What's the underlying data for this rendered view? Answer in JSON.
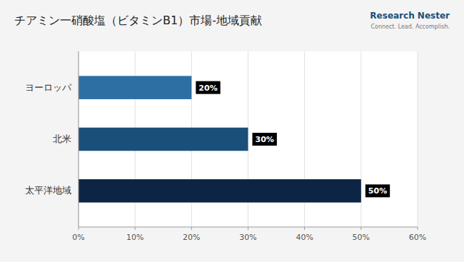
{
  "chart_data": {
    "type": "bar",
    "orientation": "horizontal",
    "title": "チアミン一硝酸塩（ビタミンB1）市場-地域貢献",
    "annotations": [
      "Research Nester",
      "Connect. Lead. Accomplish."
    ],
    "categories": [
      "太平洋地域",
      "北米",
      "ヨーロッパ"
    ],
    "values": [
      50,
      30,
      20
    ],
    "value_labels": [
      "50%",
      "30%",
      "20%"
    ],
    "data_labels": true,
    "colors": [
      "#0d2545",
      "#1a4f7a",
      "#2e6fa3"
    ],
    "xlim": [
      0,
      60
    ],
    "xticks": [
      {
        "value": 0,
        "label": "0%"
      },
      {
        "value": 10,
        "label": "10%"
      },
      {
        "value": 20,
        "label": "20%"
      },
      {
        "value": 30,
        "label": "30%"
      },
      {
        "value": 40,
        "label": "40%"
      },
      {
        "value": 50,
        "label": "50%"
      },
      {
        "value": 60,
        "label": "60%"
      }
    ],
    "grid": true
  }
}
